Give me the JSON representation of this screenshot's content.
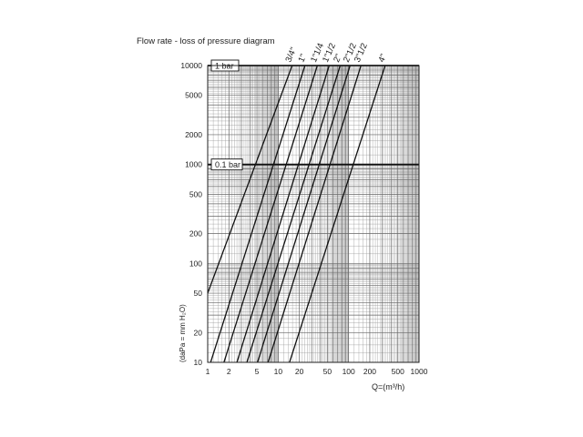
{
  "chart_data": {
    "type": "line",
    "title": "Flow rate - loss of pressure diagram",
    "xlabel": "Q=(m³/h)",
    "ylabel": "(daPa = mm H₂O)",
    "x_scale": "log",
    "y_scale": "log",
    "xlim": [
      1,
      1000
    ],
    "ylim": [
      10,
      10000
    ],
    "grid": true,
    "x_tick_labels": [
      "1",
      "2",
      "5",
      "10",
      "20",
      "50",
      "100",
      "200",
      "500",
      "1000"
    ],
    "x_ticks": [
      1,
      2,
      5,
      10,
      20,
      50,
      100,
      200,
      500,
      1000
    ],
    "y_tick_labels": [
      "10",
      "20",
      "50",
      "100",
      "200",
      "500",
      "1000",
      "2000",
      "5000",
      "10000"
    ],
    "y_ticks": [
      10,
      20,
      50,
      100,
      200,
      500,
      1000,
      2000,
      5000,
      10000
    ],
    "annotations": [
      {
        "text": "1 bar",
        "y": 10000
      },
      {
        "text": "0.1 bar",
        "y": 1000
      }
    ],
    "series": [
      {
        "name": "3/4\"",
        "x": [
          1,
          15.8
        ],
        "y": [
          50,
          10000
        ]
      },
      {
        "name": "1\"",
        "x": [
          1.1,
          24
        ],
        "y": [
          10,
          10000
        ]
      },
      {
        "name": "1\"1/4",
        "x": [
          1.7,
          36
        ],
        "y": [
          10,
          10000
        ]
      },
      {
        "name": "1\"1/2",
        "x": [
          2.6,
          53
        ],
        "y": [
          10,
          10000
        ]
      },
      {
        "name": "2\"",
        "x": [
          3.6,
          76
        ],
        "y": [
          10,
          10000
        ]
      },
      {
        "name": "2\"1/2",
        "x": [
          5.1,
          105
        ],
        "y": [
          10,
          10000
        ]
      },
      {
        "name": "3\"1/2",
        "x": [
          7.2,
          150
        ],
        "y": [
          10,
          10000
        ]
      },
      {
        "name": "4\"",
        "x": [
          14.5,
          330
        ],
        "y": [
          10,
          10000
        ]
      }
    ]
  }
}
